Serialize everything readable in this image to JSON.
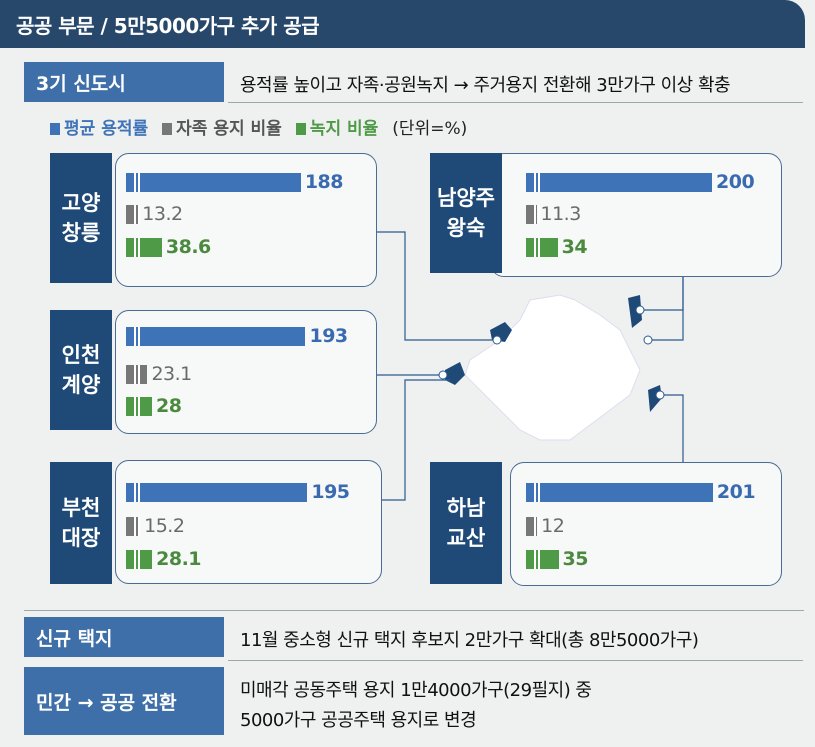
{
  "title": "공공 부문 / 5만5000가구 추가 공급",
  "section1": {
    "label": "3기 신도시",
    "desc": "용적률 높이고 자족·공원녹지 → 주거용지 전환해 3만가구 이상 확충"
  },
  "legend": {
    "items": [
      {
        "label": "평균 용적률",
        "color": "#3f73b8"
      },
      {
        "label": "자족 용지 비율",
        "color": "#777777"
      },
      {
        "label": "녹지 비율",
        "color": "#4f9a46"
      }
    ],
    "unit": "(단위=%)"
  },
  "chart_data": {
    "type": "bar",
    "series": [
      {
        "name": "평균 용적률",
        "color": "#3f73b8"
      },
      {
        "name": "자족 용지 비율",
        "color": "#777777"
      },
      {
        "name": "녹지 비율",
        "color": "#4f9a46"
      }
    ],
    "panels": [
      {
        "city": "고양 창릉",
        "line1": "고양",
        "line2": "창릉",
        "values": [
          "188",
          "13.2",
          "38.6"
        ]
      },
      {
        "city": "인천 계양",
        "line1": "인천",
        "line2": "계양",
        "values": [
          "193",
          "23.1",
          "28"
        ]
      },
      {
        "city": "부천 대장",
        "line1": "부천",
        "line2": "대장",
        "values": [
          "195",
          "15.2",
          "28.1"
        ]
      },
      {
        "city": "남양주 왕숙",
        "line1": "남양주",
        "line2": "왕숙",
        "values": [
          "200",
          "11.3",
          "34"
        ]
      },
      {
        "city": "하남 교산",
        "line1": "하남",
        "line2": "교산",
        "values": [
          "201",
          "12",
          "35"
        ]
      }
    ]
  },
  "section2": {
    "label": "신규 택지",
    "desc": "11월 중소형 신규 택지 후보지 2만가구 확대(총 8만5000가구)"
  },
  "section3": {
    "label": "민간 → 공공 전환",
    "desc1": "미매각 공동주택 용지 1만4000가구(29필지) 중",
    "desc2": "5000가구 공공주택 용지로 변경"
  }
}
